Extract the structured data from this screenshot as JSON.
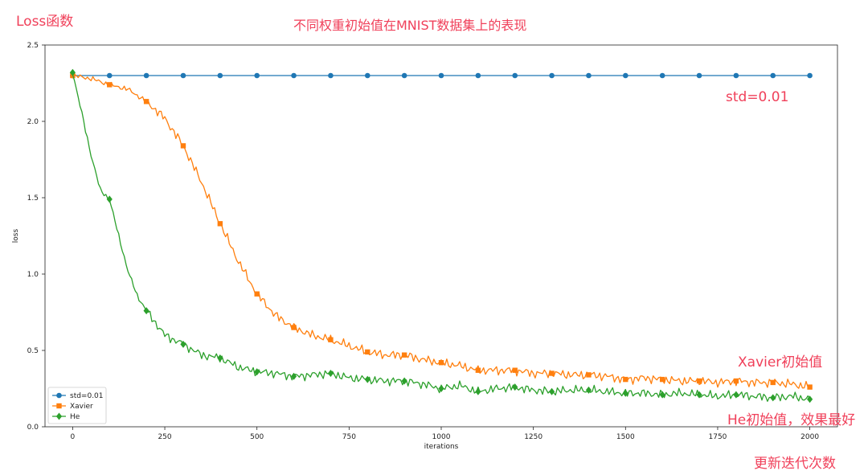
{
  "annotations": {
    "loss_func": "Loss函数",
    "title": "不同权重初始值在MNIST数据集上的表现",
    "std_note": "std=0.01",
    "xavier_note": "Xavier初始值",
    "he_note": "He初始值，效果最好",
    "iter_note": "更新迭代次数"
  },
  "chart_data": {
    "type": "line",
    "title": "",
    "xlabel": "iterations",
    "ylabel": "loss",
    "xlim": [
      -75,
      2075
    ],
    "ylim": [
      0,
      2.5
    ],
    "xticks": [
      0,
      250,
      500,
      750,
      1000,
      1250,
      1500,
      1750,
      2000
    ],
    "yticks": [
      0.0,
      0.5,
      1.0,
      1.5,
      2.0,
      2.5
    ],
    "grid": false,
    "legend": "lower-left",
    "marker_every": 100,
    "series": [
      {
        "name": "std=0.01",
        "color": "#1f77b4",
        "marker": "circle",
        "x": [
          0,
          100,
          200,
          300,
          400,
          500,
          600,
          700,
          800,
          900,
          1000,
          1100,
          1200,
          1300,
          1400,
          1500,
          1600,
          1700,
          1800,
          1900,
          2000
        ],
        "values": [
          2.3,
          2.3,
          2.3,
          2.3,
          2.3,
          2.3,
          2.3,
          2.3,
          2.3,
          2.3,
          2.3,
          2.3,
          2.3,
          2.3,
          2.3,
          2.3,
          2.3,
          2.3,
          2.3,
          2.3,
          2.3
        ]
      },
      {
        "name": "Xavier",
        "color": "#ff7f0e",
        "marker": "square",
        "x": [
          0,
          50,
          100,
          150,
          200,
          250,
          300,
          350,
          400,
          450,
          500,
          550,
          600,
          650,
          700,
          750,
          800,
          850,
          900,
          950,
          1000,
          1050,
          1100,
          1150,
          1200,
          1250,
          1300,
          1350,
          1400,
          1450,
          1500,
          1550,
          1600,
          1650,
          1700,
          1750,
          1800,
          1850,
          1900,
          1950,
          2000
        ],
        "values": [
          2.3,
          2.28,
          2.24,
          2.21,
          2.13,
          2.02,
          1.84,
          1.6,
          1.33,
          1.08,
          0.87,
          0.73,
          0.65,
          0.6,
          0.57,
          0.53,
          0.49,
          0.47,
          0.47,
          0.44,
          0.42,
          0.4,
          0.37,
          0.37,
          0.37,
          0.35,
          0.35,
          0.34,
          0.34,
          0.33,
          0.31,
          0.32,
          0.31,
          0.3,
          0.3,
          0.29,
          0.3,
          0.29,
          0.29,
          0.28,
          0.26
        ]
      },
      {
        "name": "He",
        "color": "#2ca02c",
        "marker": "diamond",
        "x": [
          0,
          25,
          50,
          75,
          100,
          125,
          150,
          175,
          200,
          250,
          300,
          350,
          400,
          450,
          500,
          550,
          600,
          650,
          700,
          750,
          800,
          850,
          900,
          950,
          1000,
          1050,
          1100,
          1150,
          1200,
          1250,
          1300,
          1350,
          1400,
          1450,
          1500,
          1550,
          1600,
          1650,
          1700,
          1750,
          1800,
          1850,
          1900,
          1950,
          2000
        ],
        "values": [
          2.32,
          2.05,
          1.78,
          1.55,
          1.49,
          1.25,
          1.02,
          0.86,
          0.76,
          0.6,
          0.54,
          0.47,
          0.45,
          0.39,
          0.36,
          0.35,
          0.33,
          0.34,
          0.35,
          0.32,
          0.31,
          0.3,
          0.3,
          0.28,
          0.25,
          0.27,
          0.23,
          0.25,
          0.26,
          0.24,
          0.23,
          0.24,
          0.24,
          0.23,
          0.22,
          0.22,
          0.21,
          0.22,
          0.21,
          0.2,
          0.21,
          0.2,
          0.19,
          0.2,
          0.18
        ]
      }
    ]
  }
}
